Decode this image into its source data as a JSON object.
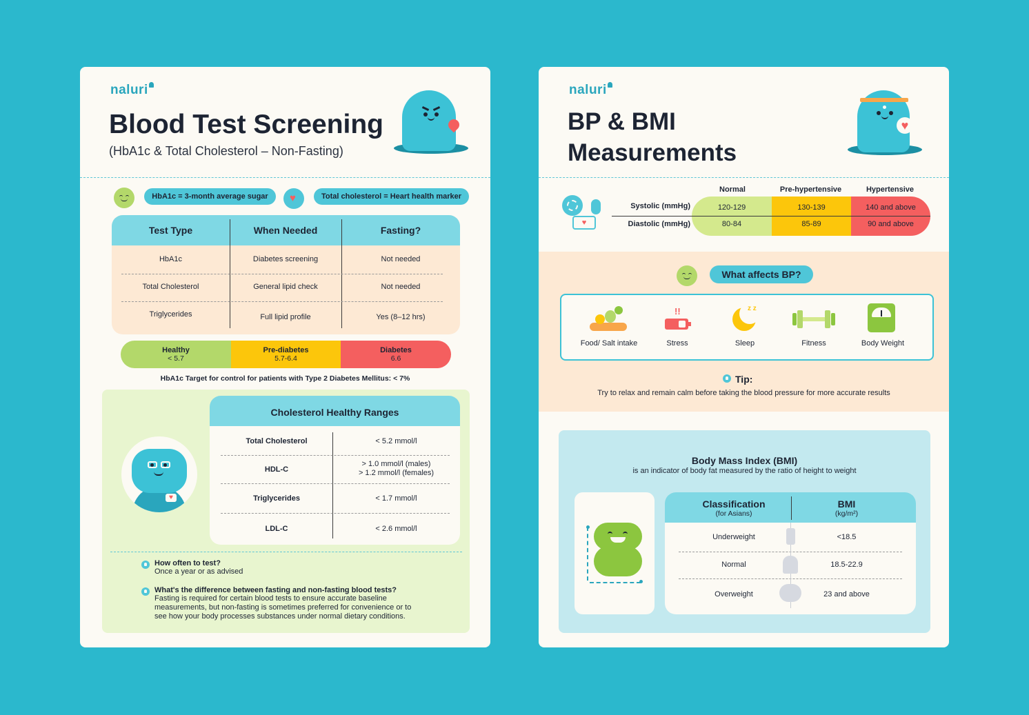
{
  "left": {
    "logo": "naluri",
    "title": "Blood Test Screening",
    "subtitle": "(HbA1c & Total Cholesterol – Non-Fasting)",
    "pills": [
      "HbA1c = 3-month average sugar",
      "Total cholesterol = Heart health marker"
    ],
    "table": {
      "headers": [
        "Test Type",
        "When Needed",
        "Fasting?"
      ],
      "rows": [
        [
          "HbA1c",
          "Diabetes screening",
          "Not needed"
        ],
        [
          "Total Cholesterol",
          "General lipid check",
          "Not needed"
        ],
        [
          "Triglycerides",
          "Full lipid profile",
          "Yes (8–12 hrs)"
        ]
      ]
    },
    "hba1c_bar": [
      {
        "label": "Healthy",
        "value": "< 5.7",
        "color": "#b3d86a"
      },
      {
        "label": "Pre-diabetes",
        "value": "5.7-6.4",
        "color": "#fcc60b"
      },
      {
        "label": "Diabetes",
        "value": "6.6",
        "color": "#f45f5f"
      }
    ],
    "target_note": "HbA1c Target for control for patients with Type 2 Diabetes Mellitus: < 7%",
    "cholesterol": {
      "title": "Cholesterol Healthy Ranges",
      "rows": [
        [
          "Total Cholesterol",
          "< 5.2 mmol/l"
        ],
        [
          "HDL-C",
          "> 1.0 mmol/l (males)",
          "> 1.2 mmol/l (females)"
        ],
        [
          "Triglycerides",
          "< 1.7 mmol/l"
        ],
        [
          "LDL-C",
          "< 2.6 mmol/l"
        ]
      ]
    },
    "qa": [
      {
        "q": "How often to test?",
        "a": [
          "Once a year or as advised"
        ]
      },
      {
        "q": "What's the difference between fasting and non-fasting blood tests?",
        "a": [
          "Fasting is required for certain blood tests to ensure accurate baseline",
          "measurements, but non-fasting is sometimes preferred for convenience or to",
          "see how your body processes substances under normal dietary conditions."
        ]
      }
    ]
  },
  "right": {
    "logo": "naluri",
    "title_line1": "BP & BMI",
    "title_line2": "Measurements",
    "bp": {
      "columns": [
        "Normal",
        "Pre-hypertensive",
        "Hypertensive"
      ],
      "rows": [
        {
          "label": "Systolic (mmHg)",
          "values": [
            "120-129",
            "130-139",
            "140 and above"
          ]
        },
        {
          "label": "Diastolic (mmHg)",
          "values": [
            "80-84",
            "85-89",
            "90 and above"
          ]
        }
      ],
      "colors": [
        "#d4e98d",
        "#fcc60b",
        "#f45f5f"
      ]
    },
    "affects": {
      "question": "What affects BP?",
      "items": [
        {
          "label": "Food/ Salt intake",
          "icon": "food-icon"
        },
        {
          "label": "Stress",
          "icon": "stress-battery-icon"
        },
        {
          "label": "Sleep",
          "icon": "moon-icon"
        },
        {
          "label": "Fitness",
          "icon": "dumbbell-icon"
        },
        {
          "label": "Body Weight",
          "icon": "scale-icon"
        }
      ]
    },
    "tip": {
      "label": "Tip:",
      "text": "Try to relax and remain calm before taking the blood pressure for more accurate results"
    },
    "bmi": {
      "title": "Body Mass Index (BMI)",
      "subtitle": "is an indicator of body fat measured by the ratio of height to weight",
      "headers": [
        {
          "main": "Classification",
          "sub": "(for Asians)"
        },
        {
          "main": "BMI",
          "sub": "(kg/m²)"
        }
      ],
      "rows": [
        [
          "Underweight",
          "<18.5"
        ],
        [
          "Normal",
          "18.5-22.9"
        ],
        [
          "Overweight",
          "23 and above"
        ]
      ]
    }
  }
}
